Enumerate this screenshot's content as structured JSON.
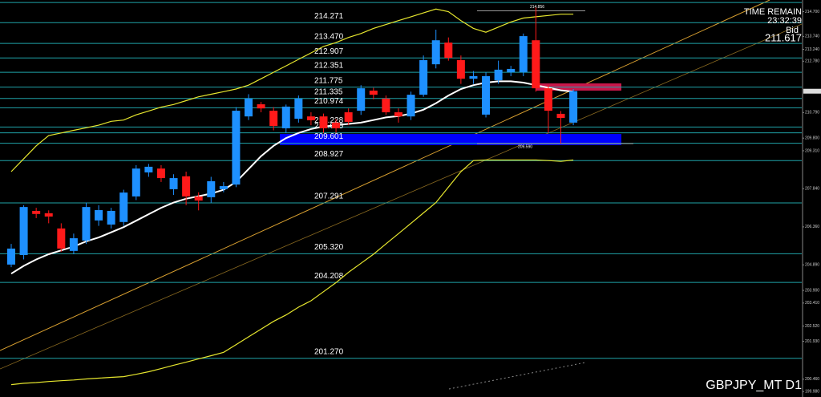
{
  "chart_data": {
    "type": "candlestick",
    "symbol": "GBPJPY_MT D1",
    "timer_label": "TIME REMAIN",
    "timer": "23:32:39",
    "bid_label": "Bid",
    "bid": 211.617,
    "ylim": [
      199.77,
      215.15
    ],
    "yticks": [
      {
        "value": 214.7,
        "label": "214.700"
      },
      {
        "value": 213.74,
        "label": "213.740"
      },
      {
        "value": 213.24,
        "label": "213.240"
      },
      {
        "value": 212.78,
        "label": "212.780"
      },
      {
        "value": 210.79,
        "label": "210.790"
      },
      {
        "value": 209.8,
        "label": "209.800"
      },
      {
        "value": 209.31,
        "label": "209.310"
      },
      {
        "value": 207.84,
        "label": "207.840"
      },
      {
        "value": 206.36,
        "label": "206.360"
      },
      {
        "value": 204.89,
        "label": "204.890"
      },
      {
        "value": 203.9,
        "label": "203.900"
      },
      {
        "value": 203.41,
        "label": "203.410"
      },
      {
        "value": 202.52,
        "label": "202.520"
      },
      {
        "value": 201.93,
        "label": "201.930"
      },
      {
        "value": 200.46,
        "label": "200.460"
      },
      {
        "value": 199.98,
        "label": "199.980"
      }
    ],
    "levels": [
      215.054,
      214.271,
      {
        "value": 213.47,
        "label": "213.470"
      },
      212.907,
      212.351,
      211.775,
      211.335,
      210.974,
      210.228,
      210.005,
      209.601,
      208.927,
      207.291,
      {
        "value": 205.32,
        "label": "205.320"
      },
      204.208,
      {
        "value": 201.27,
        "label": "201.270"
      }
    ],
    "marked_high": 214.856,
    "marked_low": {
      "value": 209.59,
      "label": "209.590"
    },
    "zones": [
      {
        "color": "#0000ff",
        "range": [
          209.53,
          209.96
        ]
      },
      {
        "color": "#c8174a",
        "range": [
          211.64,
          211.92
        ]
      }
    ],
    "up_color": "#1e90ff",
    "down_color": "#ff1a1a",
    "open": [
      204.9,
      205.27,
      206.98,
      206.89,
      206.3,
      205.43,
      205.83,
      206.61,
      206.45,
      206.55,
      207.54,
      208.47,
      208.62,
      207.82,
      208.32,
      207.54,
      207.51,
      207.82,
      208.0,
      210.64,
      211.11,
      210.86,
      210.18,
      210.55,
      210.64,
      210.64,
      210.4,
      210.8,
      210.86,
      211.64,
      211.33,
      210.8,
      210.64,
      211.48,
      212.66,
      213.5,
      212.82,
      212.1,
      210.71,
      212.04,
      212.35,
      212.35,
      213.59,
      211.73,
      210.74,
      210.4
    ],
    "high": [
      205.7,
      207.2,
      207.1,
      207.0,
      206.5,
      206.1,
      207.3,
      207.2,
      207.1,
      207.8,
      208.75,
      208.8,
      208.75,
      208.4,
      208.5,
      207.7,
      208.3,
      208.1,
      211.0,
      211.5,
      211.2,
      211.0,
      211.1,
      211.45,
      210.8,
      210.75,
      210.55,
      210.95,
      211.85,
      211.75,
      211.45,
      210.95,
      211.6,
      213.0,
      214.0,
      213.7,
      213.0,
      212.4,
      212.35,
      212.8,
      212.6,
      213.85,
      214.86,
      211.85,
      210.85,
      211.7
    ],
    "low": [
      204.8,
      205.1,
      206.7,
      206.5,
      205.4,
      205.3,
      205.7,
      206.4,
      206.3,
      206.4,
      207.4,
      208.3,
      208.1,
      207.6,
      207.2,
      207.0,
      207.3,
      207.7,
      207.9,
      210.5,
      210.8,
      210.1,
      210.0,
      210.4,
      210.3,
      210.0,
      210.0,
      210.3,
      210.7,
      211.3,
      210.7,
      210.4,
      210.5,
      211.4,
      212.5,
      212.8,
      211.9,
      211.9,
      210.6,
      211.9,
      212.2,
      212.2,
      211.6,
      210.0,
      209.59,
      210.3
    ],
    "close": [
      205.52,
      207.13,
      206.86,
      206.76,
      205.52,
      205.92,
      207.13,
      207.01,
      206.98,
      207.69,
      208.62,
      208.69,
      208.25,
      208.25,
      207.54,
      207.38,
      208.13,
      207.94,
      210.86,
      211.33,
      210.95,
      210.27,
      211.02,
      211.33,
      210.49,
      210.18,
      210.18,
      210.43,
      211.73,
      211.48,
      210.8,
      210.64,
      211.48,
      212.82,
      213.59,
      212.91,
      212.1,
      212.2,
      212.2,
      212.45,
      212.48,
      213.75,
      211.73,
      210.86,
      210.58,
      211.62
    ],
    "series": [
      {
        "color": "#ffffff",
        "values": [
          204.55,
          204.85,
          205.1,
          205.3,
          205.45,
          205.6,
          205.8,
          205.95,
          206.15,
          206.35,
          206.6,
          206.85,
          207.1,
          207.3,
          207.45,
          207.55,
          207.65,
          207.8,
          208.1,
          208.6,
          209.1,
          209.5,
          209.8,
          210.0,
          210.15,
          210.25,
          210.3,
          210.35,
          210.4,
          210.5,
          210.6,
          210.65,
          210.75,
          210.9,
          211.15,
          211.45,
          211.7,
          211.85,
          211.95,
          212.0,
          212.0,
          211.95,
          211.85,
          211.75,
          211.65,
          211.6
        ]
      },
      {
        "color": "#e6e62e",
        "values": [
          208.5,
          209.0,
          209.5,
          209.9,
          210.0,
          210.1,
          210.2,
          210.3,
          210.45,
          210.5,
          210.7,
          210.85,
          211.0,
          211.1,
          211.25,
          211.4,
          211.5,
          211.6,
          211.7,
          211.85,
          212.1,
          212.35,
          212.6,
          212.85,
          213.1,
          213.35,
          213.5,
          213.7,
          213.85,
          214.05,
          214.2,
          214.35,
          214.5,
          214.65,
          214.8,
          214.7,
          214.35,
          214.05,
          213.9,
          214.1,
          214.3,
          214.45,
          214.5,
          214.55,
          214.6,
          214.6
        ]
      },
      {
        "color": "#e6e62e",
        "values": [
          200.25,
          200.3,
          200.33,
          200.37,
          200.4,
          200.43,
          200.47,
          200.5,
          200.53,
          200.56,
          200.65,
          200.75,
          200.87,
          201.0,
          201.12,
          201.25,
          201.37,
          201.5,
          201.8,
          202.1,
          202.4,
          202.7,
          202.95,
          203.25,
          203.5,
          203.85,
          204.2,
          204.6,
          204.95,
          205.3,
          205.7,
          206.1,
          206.5,
          206.9,
          207.3,
          207.9,
          208.5,
          208.93,
          208.95,
          208.95,
          208.95,
          208.95,
          208.95,
          208.93,
          208.9,
          208.95
        ]
      }
    ]
  }
}
